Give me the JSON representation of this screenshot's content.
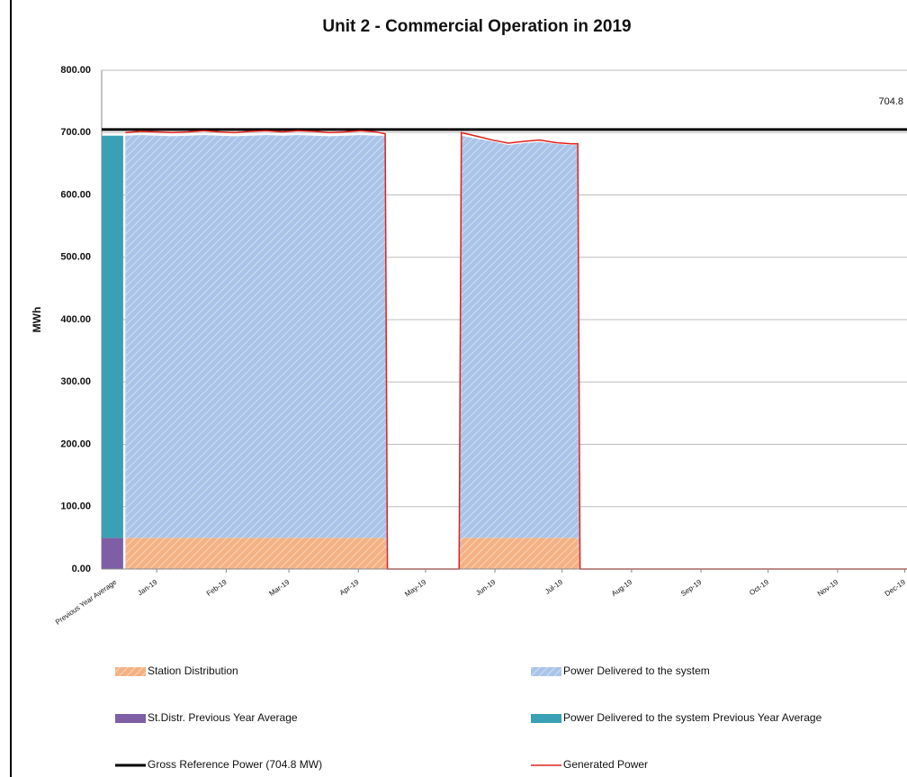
{
  "chart_data": {
    "type": "stacked-area",
    "title": "Unit 2 - Commercial Operation in 2019",
    "ylabel": "MWh",
    "ylim": [
      0,
      800
    ],
    "yticks": [
      {
        "value": 0,
        "label": "0.00"
      },
      {
        "value": 100,
        "label": "100.00"
      },
      {
        "value": 200,
        "label": "200.00"
      },
      {
        "value": 300,
        "label": "300.00"
      },
      {
        "value": 400,
        "label": "400.00"
      },
      {
        "value": 500,
        "label": "500.00"
      },
      {
        "value": 600,
        "label": "600.00"
      },
      {
        "value": 700,
        "label": "700.00"
      },
      {
        "value": 800,
        "label": "800.00"
      }
    ],
    "grid": true,
    "xlim": [
      -9.6,
      350
    ],
    "xticks": [
      {
        "value": 15,
        "label": "Jan-19"
      },
      {
        "value": 46,
        "label": "Feb-19"
      },
      {
        "value": 74,
        "label": "Mar-19"
      },
      {
        "value": 105,
        "label": "Apr-19"
      },
      {
        "value": 135,
        "label": "May-19"
      },
      {
        "value": 166,
        "label": "Jun-19"
      },
      {
        "value": 196,
        "label": "Jul-19"
      },
      {
        "value": 227,
        "label": "Aug-19"
      },
      {
        "value": 258,
        "label": "Sep-19"
      },
      {
        "value": 288,
        "label": "Oct-19"
      },
      {
        "value": 319,
        "label": "Nov-19"
      },
      {
        "value": 349,
        "label": "Dec-19"
      }
    ],
    "x": [
      1,
      8,
      15,
      22,
      29,
      36,
      43,
      50,
      57,
      64,
      71,
      78,
      85,
      92,
      99,
      106,
      113,
      117,
      118,
      150,
      151,
      158,
      165,
      172,
      179,
      186,
      193,
      200,
      203,
      204,
      350
    ],
    "series": [
      {
        "name": "Station Distribution",
        "color": "#f4b183",
        "hatch": true,
        "values": [
          50,
          50,
          50,
          50,
          50,
          50,
          50,
          50,
          50,
          50,
          50,
          50,
          50,
          50,
          50,
          50,
          50,
          50,
          0,
          0,
          50,
          50,
          50,
          50,
          50,
          50,
          50,
          50,
          50,
          0,
          0
        ]
      },
      {
        "name": "Power Delivered to the system",
        "color": "#a9c4e8",
        "hatch": true,
        "values": [
          645,
          646,
          645,
          644,
          645,
          646,
          645,
          644,
          645,
          646,
          645,
          646,
          645,
          644,
          645,
          646,
          645,
          645,
          0,
          0,
          645,
          640,
          636,
          630,
          633,
          635,
          632,
          630,
          630,
          0,
          0
        ]
      },
      {
        "name": "Generated Power",
        "color": "#e0201b",
        "line": true,
        "values": [
          700,
          702,
          701,
          700,
          701,
          703,
          701,
          700,
          702,
          703,
          701,
          703,
          702,
          700,
          701,
          703,
          701,
          698,
          0,
          0,
          700,
          694,
          688,
          683,
          686,
          688,
          684,
          682,
          682,
          0,
          0
        ]
      }
    ],
    "previous_year_average": {
      "label": "Previous Year Average",
      "series": [
        {
          "name": "St.Distr. Previous Year Average",
          "color": "#7e5fa6",
          "value": 50
        },
        {
          "name": "Power Delivered to the system Previous Year Average",
          "color": "#3aa0b5",
          "value": 645
        }
      ]
    },
    "reference_line": {
      "name": "Gross Reference Power (704.8 MW)",
      "value": 704.8,
      "color": "#000000"
    }
  }
}
